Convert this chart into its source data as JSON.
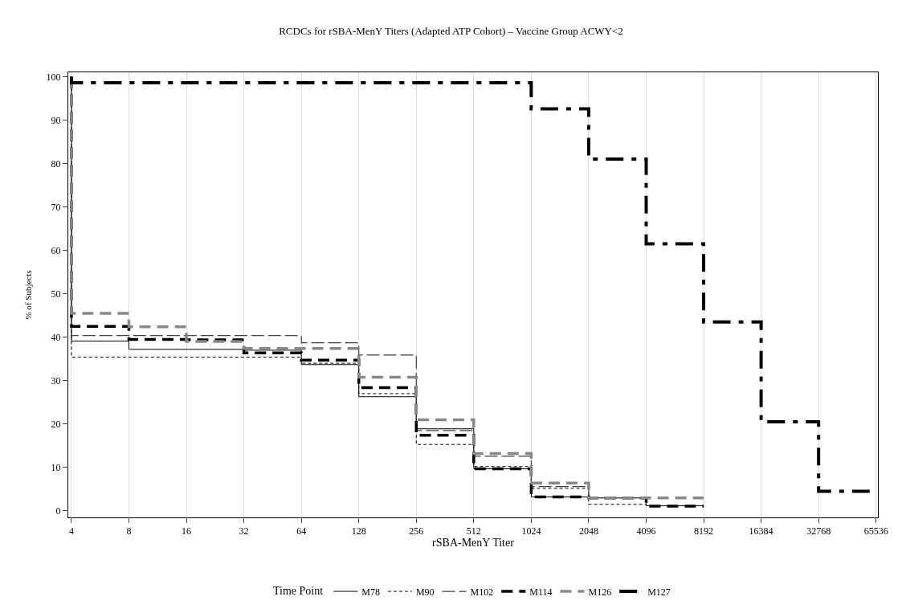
{
  "chart_data": {
    "type": "step",
    "title": "RCDCs for rSBA-MenY Titers (Adapted ATP Cohort) – Vaccine Group ACWY<2",
    "xlabel": "rSBA-MenY Titer",
    "ylabel": "% of Subjects",
    "legend_title": "Time Point",
    "log": "x",
    "grid": "x",
    "legend": "bottom",
    "xlim": [
      3.85,
      67000
    ],
    "xticks": [
      4,
      8,
      16,
      32,
      64,
      128,
      256,
      512,
      1024,
      2048,
      4096,
      8192,
      16384,
      32768,
      65536
    ],
    "ylim": [
      -1.5,
      101
    ],
    "yticks": [
      0,
      10,
      20,
      30,
      40,
      50,
      60,
      70,
      80,
      90,
      100
    ],
    "series": [
      {
        "name": "M78",
        "color": "#000000",
        "line_style": "solid",
        "x": [
          4,
          4,
          8,
          16,
          32,
          64,
          128,
          256,
          512,
          1024,
          2048,
          4096,
          8192
        ],
        "values": [
          100,
          39.1,
          37.2,
          37.2,
          37,
          33.7,
          26.3,
          18.9,
          9.7,
          3.2,
          3,
          1.2,
          1.2
        ]
      },
      {
        "name": "M90",
        "color": "#000000",
        "line_style": "dotted",
        "x": [
          4,
          4,
          8,
          16,
          32,
          64,
          128,
          256,
          512,
          1024,
          2048,
          4096
        ],
        "values": [
          100,
          35.4,
          35.4,
          35.4,
          35.4,
          34,
          27,
          15.3,
          10.2,
          5.2,
          1.5,
          1.5
        ]
      },
      {
        "name": "M102",
        "color": "#404040",
        "line_style": "longdash",
        "x": [
          4,
          4,
          8,
          16,
          32,
          64,
          128,
          256,
          512,
          1024,
          2048,
          4096
        ],
        "values": [
          100,
          40.4,
          40.4,
          40.4,
          40.4,
          38.7,
          35.9,
          18.5,
          12.6,
          5.6,
          3,
          3
        ]
      },
      {
        "name": "M114",
        "color": "#000000",
        "line_style": "dashed",
        "x": [
          4,
          4,
          8,
          16,
          32,
          64,
          128,
          256,
          512,
          1024,
          2048,
          4096,
          8192
        ],
        "values": [
          100,
          42.5,
          39.5,
          39.4,
          36.4,
          34.7,
          28.4,
          17.4,
          9.7,
          3.2,
          3,
          1.1,
          1.1
        ]
      },
      {
        "name": "M126",
        "color": "#888888",
        "line_style": "dashed",
        "x": [
          4,
          4,
          8,
          16,
          32,
          64,
          128,
          256,
          512,
          1024,
          2048,
          4096,
          8192
        ],
        "values": [
          100,
          45.5,
          42.4,
          39,
          37.4,
          37.4,
          30.8,
          21,
          13.2,
          6.4,
          3,
          3,
          3
        ]
      },
      {
        "name": "M127",
        "color": "#000000",
        "line_style": "dashdot",
        "x": [
          4,
          4,
          1024,
          2048,
          4096,
          8192,
          16384,
          32768,
          65536
        ],
        "values": [
          100,
          98.6,
          92.6,
          81,
          61.5,
          43.5,
          20.5,
          4.5,
          4.5
        ]
      }
    ]
  }
}
